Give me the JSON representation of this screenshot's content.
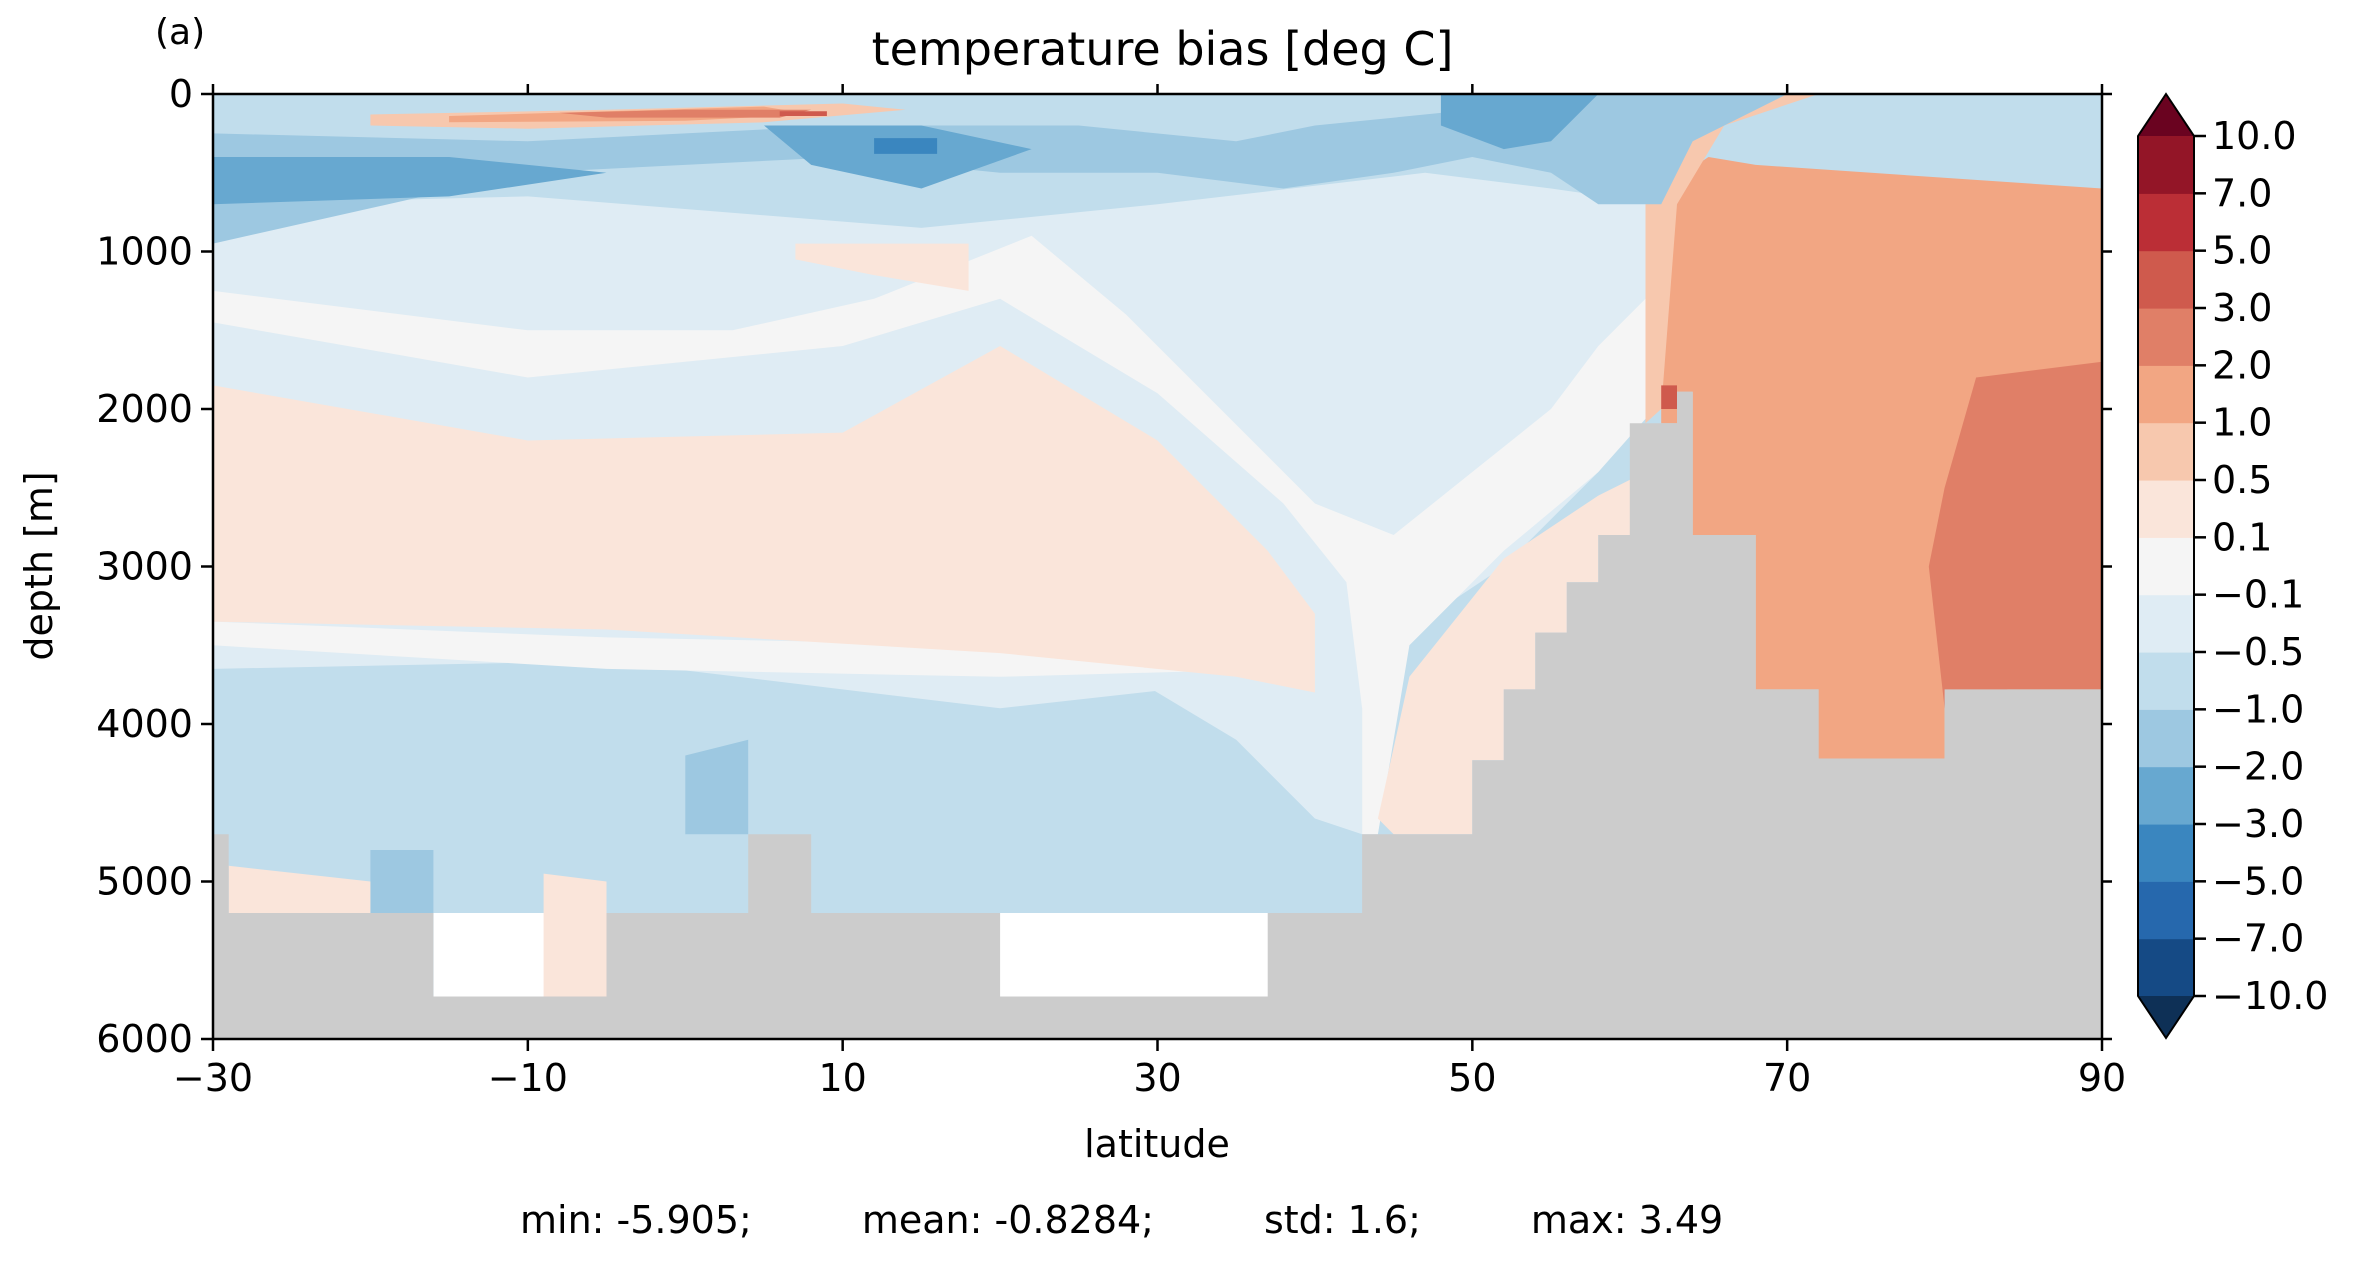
{
  "panel_label": "(a)",
  "chart_data": {
    "type": "contourf",
    "title": "temperature bias [deg C]",
    "xlabel": "latitude",
    "ylabel": "depth [m]",
    "xlim": [
      -30,
      90
    ],
    "ylim": [
      6000,
      0
    ],
    "x_ticks": [
      -30,
      -10,
      10,
      30,
      50,
      70,
      90
    ],
    "x_tick_labels": [
      "−30",
      "−10",
      "10",
      "30",
      "50",
      "70",
      "90"
    ],
    "y_ticks": [
      0,
      1000,
      2000,
      3000,
      4000,
      5000,
      6000
    ],
    "y_tick_labels": [
      "0",
      "1000",
      "2000",
      "3000",
      "4000",
      "5000",
      "6000"
    ],
    "colorbar": {
      "levels": [
        -10,
        -7,
        -5,
        -3,
        -2,
        -1,
        -0.5,
        -0.1,
        0.1,
        0.5,
        1,
        2,
        3,
        5,
        7,
        10
      ],
      "tick_labels": [
        "−10.0",
        "−7.0",
        "−5.0",
        "−3.0",
        "−2.0",
        "−1.0",
        "−0.5",
        "−0.1",
        "0.1",
        "0.5",
        "1.0",
        "2.0",
        "3.0",
        "5.0",
        "7.0",
        "10.0"
      ],
      "colors": [
        "#154a85",
        "#2668ad",
        "#3a86bf",
        "#67a8d0",
        "#9dc8e1",
        "#c1ddec",
        "#dfecf4",
        "#f5f5f5",
        "#fae5da",
        "#f7c8ae",
        "#f2a683",
        "#e07f67",
        "#cf5a4d",
        "#bb2e36",
        "#931527"
      ],
      "under_color": "#0e3056",
      "over_color": "#6a0320",
      "extend": "both"
    },
    "land_color": "#cccccc",
    "bathymetry": [
      [
        -30,
        4700
      ],
      [
        -29,
        4700
      ],
      [
        -29,
        5200
      ],
      [
        -16,
        5200
      ],
      [
        -16,
        5730
      ],
      [
        -5,
        5730
      ],
      [
        -5,
        5200
      ],
      [
        4,
        5200
      ],
      [
        4,
        4700
      ],
      [
        8,
        4700
      ],
      [
        8,
        5200
      ],
      [
        14,
        5200
      ],
      [
        14,
        5730
      ],
      [
        13,
        5730
      ],
      [
        13,
        5200
      ],
      [
        20,
        5200
      ],
      [
        20,
        5730
      ],
      [
        37,
        5730
      ],
      [
        37,
        5200
      ],
      [
        43,
        5200
      ],
      [
        43,
        4700
      ],
      [
        50,
        4700
      ],
      [
        50,
        4230
      ],
      [
        52,
        4230
      ],
      [
        52,
        3780
      ],
      [
        54,
        3780
      ],
      [
        54,
        3420
      ],
      [
        56,
        3420
      ],
      [
        56,
        3100
      ],
      [
        58,
        3100
      ],
      [
        58,
        2800
      ],
      [
        60,
        2800
      ],
      [
        60,
        2090
      ],
      [
        63,
        2090
      ],
      [
        63,
        1890
      ],
      [
        64,
        1890
      ],
      [
        64,
        2800
      ],
      [
        68,
        2800
      ],
      [
        68,
        3780
      ],
      [
        72,
        3780
      ],
      [
        72,
        4220
      ],
      [
        80,
        4220
      ],
      [
        80,
        3780
      ],
      [
        90,
        3780
      ]
    ],
    "regions": [
      {
        "value": -1.0,
        "points": [
          [
            -30,
            0
          ],
          [
            90,
            0
          ],
          [
            90,
            5200
          ],
          [
            -30,
            5200
          ]
        ]
      },
      {
        "value": -0.5,
        "points": [
          [
            -30,
            3100
          ],
          [
            -5,
            3250
          ],
          [
            20,
            3300
          ],
          [
            38,
            3150
          ],
          [
            38,
            3700
          ],
          [
            20,
            3900
          ],
          [
            -5,
            3600
          ],
          [
            -30,
            3650
          ]
        ]
      },
      {
        "value": -0.5,
        "points": [
          [
            -30,
            700
          ],
          [
            -10,
            650
          ],
          [
            15,
            850
          ],
          [
            30,
            700
          ],
          [
            47,
            500
          ],
          [
            55,
            600
          ],
          [
            62,
            700
          ],
          [
            62,
            1900
          ],
          [
            58,
            2400
          ],
          [
            52,
            3000
          ],
          [
            46,
            3400
          ],
          [
            43,
            3800
          ],
          [
            43,
            4700
          ],
          [
            40,
            4600
          ],
          [
            35,
            4100
          ],
          [
            25,
            3500
          ],
          [
            20,
            3300
          ],
          [
            -5,
            3250
          ],
          [
            -30,
            3100
          ]
        ]
      },
      {
        "value": -0.1,
        "points": [
          [
            -30,
            1450
          ],
          [
            -10,
            1800
          ],
          [
            10,
            1600
          ],
          [
            20,
            1300
          ],
          [
            30,
            1900
          ],
          [
            38,
            2600
          ],
          [
            42,
            3100
          ],
          [
            43,
            3900
          ],
          [
            43,
            4700
          ],
          [
            44,
            4700
          ],
          [
            46,
            3500
          ],
          [
            52,
            2900
          ],
          [
            58,
            2400
          ],
          [
            62,
            1950
          ],
          [
            62,
            1200
          ],
          [
            58,
            1600
          ],
          [
            55,
            2000
          ],
          [
            50,
            2400
          ],
          [
            45,
            2800
          ],
          [
            40,
            2600
          ],
          [
            34,
            2000
          ],
          [
            28,
            1400
          ],
          [
            22,
            900
          ],
          [
            12,
            1300
          ],
          [
            3,
            1500
          ],
          [
            -10,
            1500
          ],
          [
            -30,
            1250
          ]
        ]
      },
      {
        "value": -0.1,
        "points": [
          [
            -30,
            3350
          ],
          [
            -5,
            3450
          ],
          [
            20,
            3500
          ],
          [
            35,
            3450
          ],
          [
            38,
            3350
          ],
          [
            38,
            3650
          ],
          [
            20,
            3700
          ],
          [
            -5,
            3650
          ],
          [
            -30,
            3500
          ]
        ]
      },
      {
        "value": 0.1,
        "points": [
          [
            -30,
            1850
          ],
          [
            -10,
            2200
          ],
          [
            10,
            2150
          ],
          [
            20,
            1600
          ],
          [
            30,
            2200
          ],
          [
            37,
            2900
          ],
          [
            40,
            3300
          ],
          [
            40,
            3800
          ],
          [
            35,
            3700
          ],
          [
            20,
            3550
          ],
          [
            -5,
            3400
          ],
          [
            -30,
            3350
          ]
        ]
      },
      {
        "value": 0.1,
        "points": [
          [
            7,
            950
          ],
          [
            18,
            950
          ],
          [
            18,
            1250
          ],
          [
            12,
            1150
          ],
          [
            7,
            1050
          ]
        ]
      },
      {
        "value": 0.1,
        "points": [
          [
            44,
            4600
          ],
          [
            46,
            3700
          ],
          [
            52,
            2950
          ],
          [
            58,
            2550
          ],
          [
            61,
            2400
          ],
          [
            61,
            2800
          ],
          [
            58,
            2800
          ],
          [
            58,
            3100
          ],
          [
            56,
            3100
          ],
          [
            56,
            3420
          ],
          [
            54,
            3420
          ],
          [
            54,
            3780
          ],
          [
            52,
            3780
          ],
          [
            52,
            4230
          ],
          [
            50,
            4230
          ],
          [
            50,
            4700
          ],
          [
            45,
            4700
          ]
        ]
      },
      {
        "value": 1.0,
        "points": [
          [
            62,
            600
          ],
          [
            65,
            400
          ],
          [
            68,
            450
          ],
          [
            90,
            600
          ],
          [
            90,
            3780
          ],
          [
            80,
            3780
          ],
          [
            80,
            4220
          ],
          [
            72,
            4220
          ],
          [
            72,
            3780
          ],
          [
            68,
            3780
          ],
          [
            68,
            2800
          ],
          [
            64,
            2800
          ],
          [
            64,
            1890
          ],
          [
            63,
            1890
          ],
          [
            63,
            2090
          ],
          [
            62,
            2090
          ]
        ]
      },
      {
        "value": 0.5,
        "points": [
          [
            61,
            500
          ],
          [
            64,
            100
          ],
          [
            66,
            0
          ],
          [
            72,
            0
          ],
          [
            66,
            200
          ],
          [
            63,
            700
          ],
          [
            62,
            2000
          ],
          [
            61,
            2090
          ]
        ]
      },
      {
        "value": 2.0,
        "points": [
          [
            82,
            1800
          ],
          [
            90,
            1700
          ],
          [
            90,
            3780
          ],
          [
            84,
            3780
          ],
          [
            80,
            3900
          ],
          [
            79,
            3000
          ],
          [
            80,
            2500
          ]
        ]
      },
      {
        "value": 3.0,
        "points": [
          [
            62,
            1850
          ],
          [
            63,
            1850
          ],
          [
            63,
            2000
          ],
          [
            62,
            2000
          ]
        ]
      },
      {
        "value": -2.0,
        "points": [
          [
            -30,
            250
          ],
          [
            -10,
            300
          ],
          [
            10,
            200
          ],
          [
            25,
            200
          ],
          [
            35,
            300
          ],
          [
            40,
            200
          ],
          [
            50,
            100
          ],
          [
            58,
            0
          ],
          [
            70,
            0
          ],
          [
            64,
            300
          ],
          [
            62,
            700
          ],
          [
            58,
            700
          ],
          [
            55,
            500
          ],
          [
            50,
            400
          ],
          [
            45,
            500
          ],
          [
            38,
            600
          ],
          [
            30,
            500
          ],
          [
            20,
            500
          ],
          [
            10,
            400
          ],
          [
            -10,
            500
          ],
          [
            -30,
            950
          ]
        ]
      },
      {
        "value": -3.0,
        "points": [
          [
            -30,
            400
          ],
          [
            -15,
            400
          ],
          [
            -5,
            500
          ],
          [
            -15,
            650
          ],
          [
            -30,
            700
          ]
        ]
      },
      {
        "value": -3.0,
        "points": [
          [
            5,
            200
          ],
          [
            15,
            200
          ],
          [
            22,
            350
          ],
          [
            15,
            600
          ],
          [
            8,
            450
          ]
        ]
      },
      {
        "value": -3.0,
        "points": [
          [
            48,
            0
          ],
          [
            58,
            0
          ],
          [
            55,
            300
          ],
          [
            52,
            350
          ],
          [
            48,
            200
          ]
        ]
      },
      {
        "value": -5.0,
        "points": [
          [
            12,
            280
          ],
          [
            16,
            280
          ],
          [
            16,
            380
          ],
          [
            12,
            380
          ]
        ]
      },
      {
        "value": 0.5,
        "points": [
          [
            -20,
            130
          ],
          [
            -5,
            100
          ],
          [
            10,
            60
          ],
          [
            14,
            100
          ],
          [
            5,
            180
          ],
          [
            -10,
            220
          ],
          [
            -20,
            200
          ]
        ]
      },
      {
        "value": 1.0,
        "points": [
          [
            -15,
            140
          ],
          [
            -5,
            110
          ],
          [
            5,
            80
          ],
          [
            8,
            130
          ],
          [
            0,
            170
          ],
          [
            -15,
            180
          ]
        ]
      },
      {
        "value": 2.0,
        "points": [
          [
            -8,
            120
          ],
          [
            0,
            100
          ],
          [
            8,
            100
          ],
          [
            6,
            150
          ],
          [
            -5,
            150
          ]
        ]
      },
      {
        "value": 3.0,
        "points": [
          [
            6,
            110
          ],
          [
            9,
            110
          ],
          [
            9,
            140
          ],
          [
            6,
            140
          ]
        ]
      },
      {
        "value": -2.0,
        "points": [
          [
            -20,
            4800
          ],
          [
            -16,
            4800
          ],
          [
            -16,
            5730
          ],
          [
            -20,
            5600
          ]
        ]
      },
      {
        "value": -2.0,
        "points": [
          [
            0,
            4200
          ],
          [
            4,
            4100
          ],
          [
            4,
            4700
          ],
          [
            0,
            4700
          ]
        ]
      },
      {
        "value": 0.1,
        "points": [
          [
            -29,
            4900
          ],
          [
            -20,
            5000
          ],
          [
            -20,
            5200
          ],
          [
            -29,
            5200
          ]
        ]
      },
      {
        "value": 0.1,
        "points": [
          [
            -9,
            4950
          ],
          [
            -5,
            5000
          ],
          [
            -5,
            5730
          ],
          [
            -9,
            5730
          ]
        ]
      }
    ],
    "stats": {
      "min": "min: -5.905;",
      "mean": "mean: -0.8284;",
      "std": "std: 1.6;",
      "max": "max: 3.49"
    }
  }
}
